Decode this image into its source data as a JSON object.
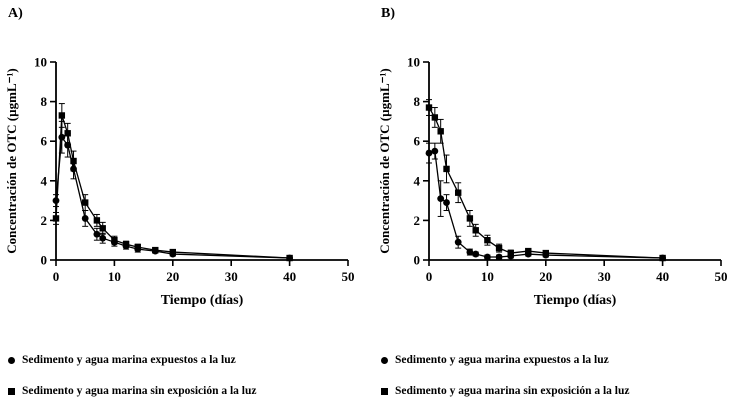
{
  "colors": {
    "axis": "#000000",
    "series": "#000000",
    "background": "#ffffff"
  },
  "panels": [
    {
      "label": "A)",
      "legend": [
        {
          "marker": "circle",
          "text": "Sedimento y agua marina expuestos a la luz"
        },
        {
          "marker": "square",
          "text": "Sedimento y agua marina sin exposición a la luz"
        }
      ]
    },
    {
      "label": "B)",
      "legend": [
        {
          "marker": "circle",
          "text": "Sedimento y agua marina expuestos a la luz"
        },
        {
          "marker": "square",
          "text": "Sedimento y agua marina sin exposición a la luz"
        }
      ]
    }
  ],
  "chart_data": [
    {
      "type": "line",
      "title": "",
      "xlabel": "Tiempo (días)",
      "ylabel": "Concentración de OTC (µgmL⁻¹)",
      "xlim": [
        0,
        50
      ],
      "ylim": [
        0,
        10
      ],
      "xticks": [
        0,
        10,
        20,
        30,
        40,
        50
      ],
      "yticks": [
        0,
        2,
        4,
        6,
        8,
        10
      ],
      "grid": false,
      "legend_position": "below",
      "series": [
        {
          "name": "Sedimento y agua marina expuestos a la luz",
          "marker": "circle",
          "color": "#000000",
          "x": [
            0,
            1,
            2,
            3,
            5,
            7,
            8,
            10,
            12,
            14,
            17,
            20,
            40
          ],
          "y": [
            3.0,
            6.2,
            5.8,
            4.6,
            2.1,
            1.3,
            1.1,
            0.9,
            0.7,
            0.55,
            0.45,
            0.3,
            0.1
          ],
          "yerr": [
            0.3,
            0.8,
            0.6,
            0.5,
            0.4,
            0.3,
            0.25,
            0.2,
            0.15,
            0.15,
            0.1,
            0.1,
            0.05
          ]
        },
        {
          "name": "Sedimento y agua marina sin exposición a la luz",
          "marker": "square",
          "color": "#000000",
          "x": [
            0,
            1,
            2,
            3,
            5,
            7,
            8,
            10,
            12,
            14,
            17,
            20,
            40
          ],
          "y": [
            2.1,
            7.3,
            6.4,
            5.0,
            2.9,
            2.0,
            1.6,
            1.0,
            0.8,
            0.65,
            0.5,
            0.4,
            0.1
          ],
          "yerr": [
            0.3,
            0.6,
            0.5,
            0.5,
            0.4,
            0.3,
            0.3,
            0.2,
            0.15,
            0.15,
            0.1,
            0.1,
            0.05
          ]
        }
      ]
    },
    {
      "type": "line",
      "title": "",
      "xlabel": "Tiempo (días)",
      "ylabel": "Concentración de OTC (µgmL⁻¹)",
      "xlim": [
        0,
        50
      ],
      "ylim": [
        0,
        10
      ],
      "xticks": [
        0,
        10,
        20,
        30,
        40,
        50
      ],
      "yticks": [
        0,
        2,
        4,
        6,
        8,
        10
      ],
      "grid": false,
      "legend_position": "below",
      "series": [
        {
          "name": "Sedimento y agua marina expuestos a la luz",
          "marker": "circle",
          "color": "#000000",
          "x": [
            0,
            1,
            2,
            3,
            5,
            7,
            8,
            10,
            12,
            14,
            17,
            20,
            40
          ],
          "y": [
            5.4,
            5.5,
            3.1,
            2.9,
            0.9,
            0.4,
            0.3,
            0.15,
            0.15,
            0.2,
            0.3,
            0.25,
            0.1
          ],
          "yerr": [
            0.5,
            0.4,
            0.9,
            0.4,
            0.3,
            0.15,
            0.1,
            0.1,
            0.1,
            0.1,
            0.1,
            0.1,
            0.05
          ]
        },
        {
          "name": "Sedimento y agua marina sin exposición a la luz",
          "marker": "square",
          "color": "#000000",
          "x": [
            0,
            1,
            2,
            3,
            5,
            7,
            8,
            10,
            12,
            14,
            17,
            20,
            40
          ],
          "y": [
            7.7,
            7.2,
            6.5,
            4.6,
            3.4,
            2.1,
            1.5,
            1.0,
            0.6,
            0.35,
            0.45,
            0.35,
            0.1
          ],
          "yerr": [
            0.4,
            0.5,
            0.6,
            0.7,
            0.5,
            0.4,
            0.3,
            0.25,
            0.2,
            0.15,
            0.1,
            0.1,
            0.05
          ]
        }
      ]
    }
  ]
}
